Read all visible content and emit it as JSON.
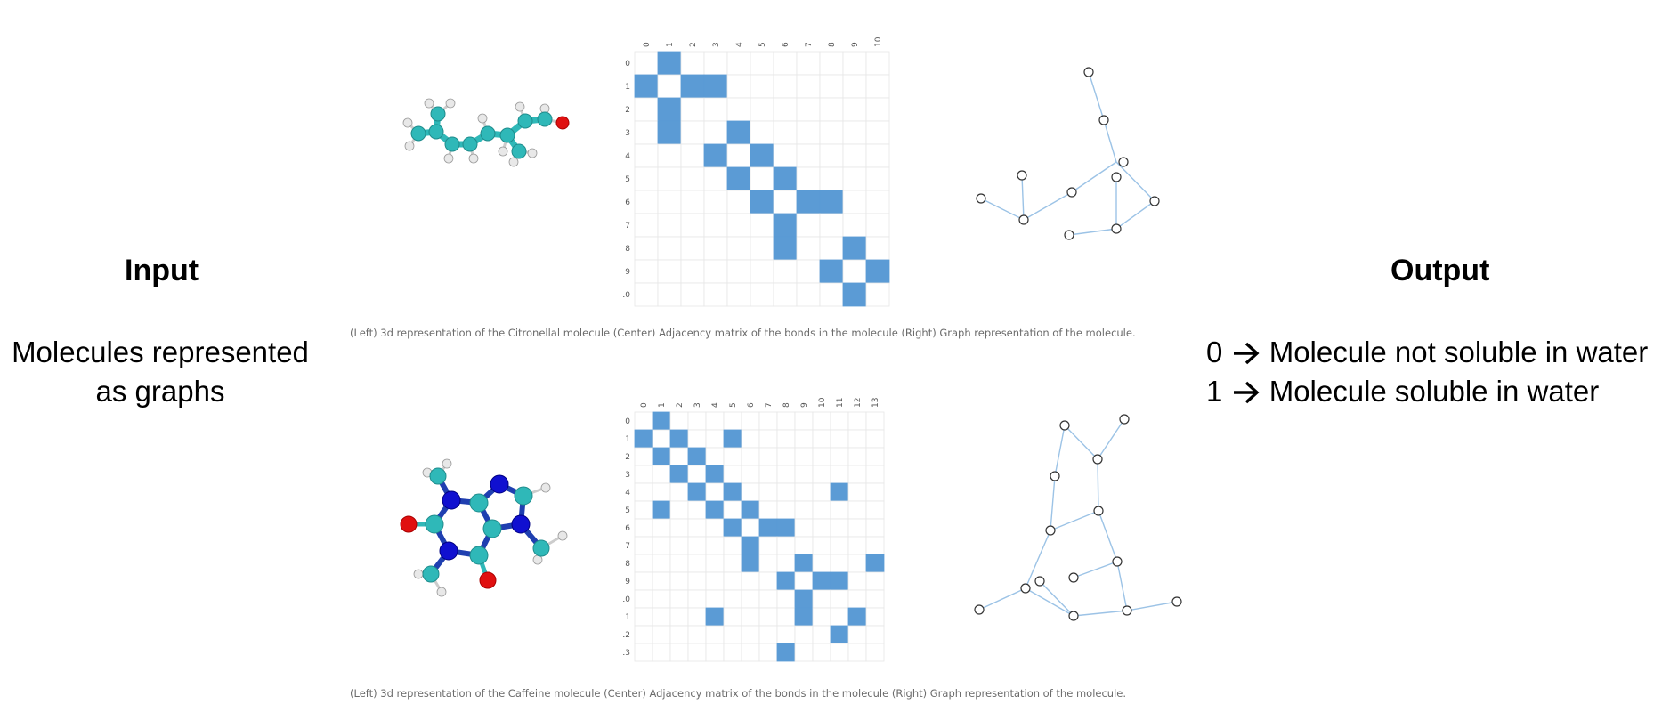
{
  "input": {
    "heading": "Input",
    "description_line1": "Molecules represented",
    "description_line2": "as graphs"
  },
  "output": {
    "heading": "Output",
    "line1_value": "0",
    "line1_text": "Molecule not soluble in water",
    "line2_value": "1",
    "line2_text": "Molecule soluble in water",
    "arrow_icon": "right-arrow-icon"
  },
  "colors": {
    "cell_fill": "#5b9bd5",
    "grid_line": "#e6e6e6",
    "edge": "#9cc3e6",
    "carbon": "#2fb8b8",
    "oxygen": "#e01010",
    "nitrogen": "#1010d0",
    "hydrogen": "#e8e8e8",
    "bond": "#1f3fb0"
  },
  "examples": [
    {
      "molecule": "Citronellal",
      "caption": "(Left) 3d representation of the Citronellal molecule (Center) Adjacency matrix of the bonds in the molecule (Right) Graph representation of the molecule.",
      "matrix_size": 11,
      "labels": [
        "0",
        "1",
        "2",
        "3",
        "4",
        "5",
        "6",
        "7",
        "8",
        "9",
        "10"
      ],
      "filled": [
        [
          0,
          1
        ],
        [
          1,
          0
        ],
        [
          1,
          2
        ],
        [
          1,
          3
        ],
        [
          2,
          1
        ],
        [
          3,
          1
        ],
        [
          3,
          4
        ],
        [
          4,
          3
        ],
        [
          4,
          5
        ],
        [
          5,
          4
        ],
        [
          5,
          6
        ],
        [
          6,
          5
        ],
        [
          6,
          7
        ],
        [
          6,
          8
        ],
        [
          7,
          6
        ],
        [
          8,
          6
        ],
        [
          8,
          9
        ],
        [
          9,
          8
        ],
        [
          9,
          10
        ],
        [
          10,
          9
        ]
      ]
    },
    {
      "molecule": "Caffeine",
      "caption": "(Left) 3d representation of the Caffeine molecule (Center) Adjacency matrix of the bonds in the molecule (Right) Graph representation of the molecule.",
      "matrix_size": 14,
      "labels": [
        "0",
        "1",
        "2",
        "3",
        "4",
        "5",
        "6",
        "7",
        "8",
        "9",
        "10",
        "11",
        "12",
        "13"
      ],
      "filled": [
        [
          0,
          1
        ],
        [
          1,
          0
        ],
        [
          1,
          2
        ],
        [
          1,
          5
        ],
        [
          2,
          1
        ],
        [
          2,
          3
        ],
        [
          3,
          2
        ],
        [
          3,
          4
        ],
        [
          4,
          3
        ],
        [
          4,
          5
        ],
        [
          4,
          11
        ],
        [
          5,
          1
        ],
        [
          5,
          4
        ],
        [
          5,
          6
        ],
        [
          6,
          5
        ],
        [
          6,
          7
        ],
        [
          6,
          8
        ],
        [
          7,
          6
        ],
        [
          8,
          6
        ],
        [
          8,
          9
        ],
        [
          8,
          13
        ],
        [
          9,
          8
        ],
        [
          9,
          10
        ],
        [
          9,
          11
        ],
        [
          10,
          9
        ],
        [
          11,
          4
        ],
        [
          11,
          9
        ],
        [
          11,
          12
        ],
        [
          12,
          11
        ],
        [
          13,
          8
        ]
      ]
    }
  ]
}
